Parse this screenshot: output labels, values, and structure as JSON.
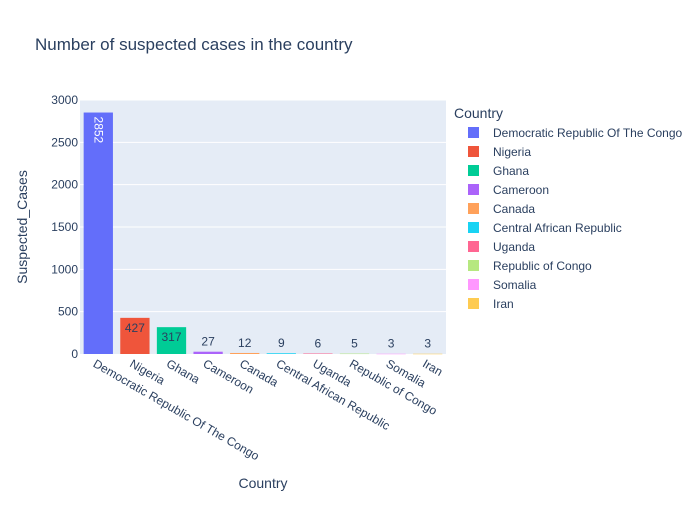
{
  "chart_data": {
    "type": "bar",
    "title": "Number of suspected cases in the country",
    "xlabel": "Country",
    "ylabel": "Suspected_Cases",
    "ylim": [
      0,
      3000
    ],
    "yticks": [
      0,
      500,
      1000,
      1500,
      2000,
      2500,
      3000
    ],
    "grid": true,
    "legend": {
      "title": "Country",
      "placement": "right"
    },
    "categories": [
      "Democratic Republic Of The Congo",
      "Nigeria",
      "Ghana",
      "Cameroon",
      "Canada",
      "Central African Republic",
      "Uganda",
      "Republic of Congo",
      "Somalia",
      "Iran"
    ],
    "values": [
      2852,
      427,
      317,
      27,
      12,
      9,
      6,
      5,
      3,
      3
    ],
    "colors": [
      "#636efa",
      "#EF553B",
      "#00cc96",
      "#ab63fa",
      "#FFA15A",
      "#19d3f3",
      "#FF6692",
      "#B6E880",
      "#FF97FF",
      "#FECB52"
    ],
    "plot_background": "#e5ecf6",
    "text_color": "#2a3f5f"
  }
}
